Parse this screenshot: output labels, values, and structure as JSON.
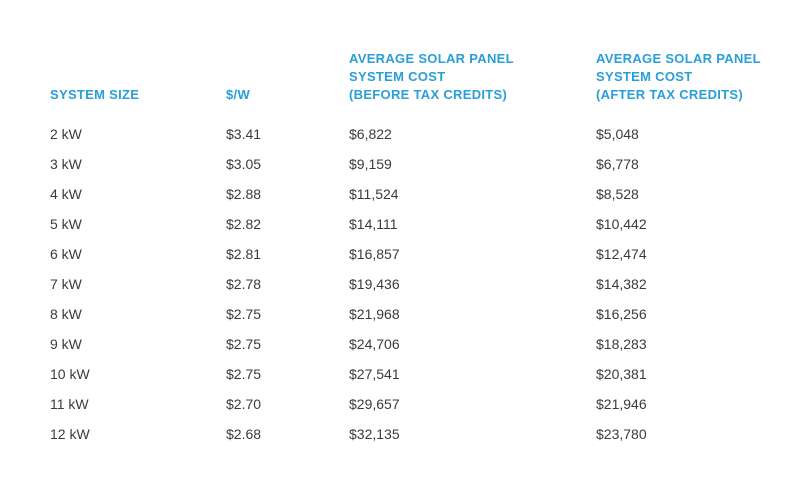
{
  "table": {
    "headers": {
      "system_size": [
        "SYSTEM SIZE"
      ],
      "price_per_watt": [
        "$/W"
      ],
      "cost_before": [
        "AVERAGE SOLAR PANEL",
        "SYSTEM COST",
        "(BEFORE TAX CREDITS)"
      ],
      "cost_after": [
        "AVERAGE SOLAR PANEL",
        "SYSTEM COST",
        "(AFTER TAX CREDITS)"
      ]
    },
    "rows": [
      [
        "2 kW",
        "$3.41",
        "$6,822",
        "$5,048"
      ],
      [
        "3 kW",
        "$3.05",
        "$9,159",
        "$6,778"
      ],
      [
        "4 kW",
        "$2.88",
        "$11,524",
        "$8,528"
      ],
      [
        "5 kW",
        "$2.82",
        "$14,111",
        "$10,442"
      ],
      [
        "6 kW",
        "$2.81",
        "$16,857",
        "$12,474"
      ],
      [
        "7 kW",
        "$2.78",
        "$19,436",
        "$14,382"
      ],
      [
        "8 kW",
        "$2.75",
        "$21,968",
        "$16,256"
      ],
      [
        "9 kW",
        "$2.75",
        "$24,706",
        "$18,283"
      ],
      [
        "10 kW",
        "$2.75",
        "$27,541",
        "$20,381"
      ],
      [
        "11 kW",
        "$2.70",
        "$29,657",
        "$21,946"
      ],
      [
        "12 kW",
        "$2.68",
        "$32,135",
        "$23,780"
      ]
    ]
  },
  "colors": {
    "header": "#2a9fd6",
    "body_text": "#3b3b3b",
    "background": "#ffffff"
  }
}
